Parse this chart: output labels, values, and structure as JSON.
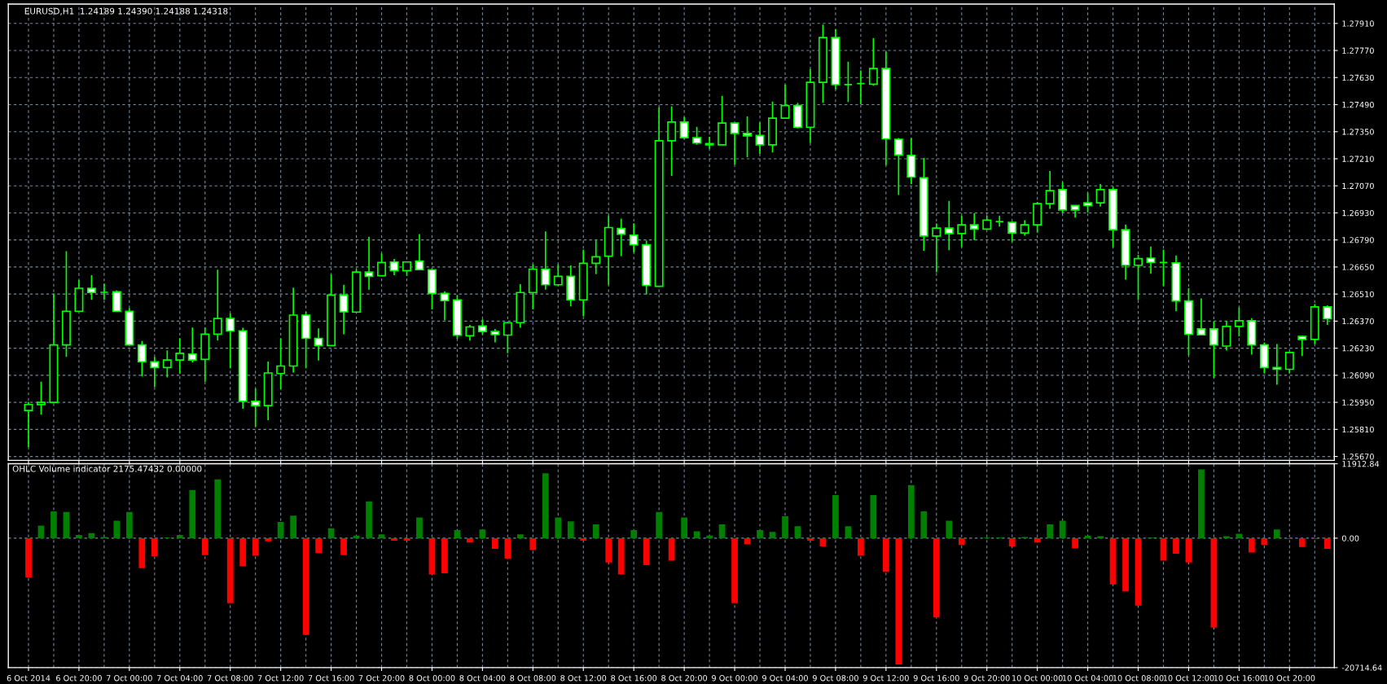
{
  "chart_data": [
    {
      "type": "candlestick",
      "title": "EURUSD,H1  1.24189 1.24390 1.24188 1.24318",
      "color": "#00ff00",
      "grid": true,
      "tick_labels": "y",
      "categories": [
        null,
        null,
        null,
        null,
        null,
        null,
        null,
        null,
        null,
        null,
        null,
        null,
        null,
        null,
        null,
        null,
        null,
        null,
        null,
        null,
        null,
        null,
        null,
        null,
        null,
        null,
        null,
        null,
        null,
        null,
        null,
        null,
        null,
        null,
        null,
        null,
        null,
        null,
        null,
        null,
        null,
        null,
        null,
        null,
        null,
        null,
        null,
        null,
        null,
        null,
        null,
        null,
        null,
        null,
        null,
        null,
        null,
        null,
        null,
        null,
        null,
        null,
        null,
        null,
        null,
        null,
        null,
        null,
        null,
        null,
        null,
        null,
        null,
        null,
        null,
        null,
        null,
        null,
        null,
        null,
        null,
        null,
        null,
        null,
        null,
        null,
        null,
        null,
        null,
        null,
        null,
        null,
        null,
        null,
        null,
        null,
        null,
        null,
        null,
        null,
        null,
        null,
        null,
        null
      ],
      "ohlc": [
        [
          1.25908,
          1.25952,
          1.25718,
          1.25939
        ],
        [
          1.25938,
          1.26057,
          1.25886,
          1.2595
        ],
        [
          1.2595,
          1.26512,
          1.2595,
          1.26247
        ],
        [
          1.26247,
          1.26732,
          1.26185,
          1.26421
        ],
        [
          1.26421,
          1.26582,
          1.26418,
          1.2654
        ],
        [
          1.2654,
          1.26608,
          1.2648,
          1.26518
        ],
        [
          1.26519,
          1.26564,
          1.2648,
          1.26519
        ],
        [
          1.26522,
          1.2653,
          1.26421,
          1.26421
        ],
        [
          1.26421,
          1.26437,
          1.26247,
          1.26247
        ],
        [
          1.26247,
          1.26267,
          1.26084,
          1.2616
        ],
        [
          1.2616,
          1.26185,
          1.26029,
          1.2613
        ],
        [
          1.2613,
          1.26219,
          1.26079,
          1.26169
        ],
        [
          1.26169,
          1.26281,
          1.26099,
          1.26204
        ],
        [
          1.262,
          1.26337,
          1.26157,
          1.26169
        ],
        [
          1.26172,
          1.26337,
          1.26057,
          1.26303
        ],
        [
          1.26303,
          1.26636,
          1.2627,
          1.26384
        ],
        [
          1.26384,
          1.2641,
          1.26126,
          1.26319
        ],
        [
          1.2632,
          1.26336,
          1.25917,
          1.25955
        ],
        [
          1.25955,
          1.26021,
          1.25824,
          1.25933
        ],
        [
          1.25933,
          1.26161,
          1.25858,
          1.26102
        ],
        [
          1.26099,
          1.26281,
          1.26017,
          1.26138
        ],
        [
          1.26138,
          1.26543,
          1.26104,
          1.26401
        ],
        [
          1.26401,
          1.26418,
          1.26126,
          1.26281
        ],
        [
          1.26281,
          1.26333,
          1.26166,
          1.26244
        ],
        [
          1.26244,
          1.26611,
          1.26244,
          1.26505
        ],
        [
          1.26505,
          1.26558,
          1.26302,
          1.26418
        ],
        [
          1.26417,
          1.26639,
          1.26417,
          1.26624
        ],
        [
          1.26624,
          1.26807,
          1.26533,
          1.26602
        ],
        [
          1.26605,
          1.2672,
          1.26605,
          1.26673
        ],
        [
          1.26676,
          1.26692,
          1.26608,
          1.26631
        ],
        [
          1.26631,
          1.26676,
          1.26605,
          1.26676
        ],
        [
          1.26681,
          1.2682,
          1.26636,
          1.26636
        ],
        [
          1.26636,
          1.26641,
          1.26431,
          1.26513
        ],
        [
          1.26513,
          1.26524,
          1.26375,
          1.26476
        ],
        [
          1.2648,
          1.26504,
          1.26278,
          1.26297
        ],
        [
          1.26294,
          1.26351,
          1.2627,
          1.2634
        ],
        [
          1.26345,
          1.26379,
          1.26302,
          1.26316
        ],
        [
          1.26316,
          1.2633,
          1.2626,
          1.263
        ],
        [
          1.26298,
          1.26362,
          1.26204,
          1.26362
        ],
        [
          1.26362,
          1.26561,
          1.26336,
          1.26518
        ],
        [
          1.26518,
          1.26664,
          1.26431,
          1.26639
        ],
        [
          1.26639,
          1.26834,
          1.26533,
          1.26558
        ],
        [
          1.26558,
          1.26664,
          1.26555,
          1.26602
        ],
        [
          1.26602,
          1.26658,
          1.26446,
          1.2648
        ],
        [
          1.2648,
          1.2674,
          1.26395,
          1.26669
        ],
        [
          1.26669,
          1.26788,
          1.26613,
          1.26703
        ],
        [
          1.26706,
          1.26916,
          1.26558,
          1.26854
        ],
        [
          1.26849,
          1.269,
          1.26706,
          1.2682
        ],
        [
          1.26815,
          1.26876,
          1.26726,
          1.26765
        ],
        [
          1.26765,
          1.26787,
          1.26508,
          1.26555
        ],
        [
          1.2655,
          1.27476,
          1.26547,
          1.27303
        ],
        [
          1.27303,
          1.27482,
          1.27121,
          1.274
        ],
        [
          1.274,
          1.27426,
          1.27313,
          1.27319
        ],
        [
          1.27319,
          1.27375,
          1.27282,
          1.27291
        ],
        [
          1.27289,
          1.27324,
          1.27261,
          1.27282
        ],
        [
          1.27282,
          1.27535,
          1.27282,
          1.27395
        ],
        [
          1.27395,
          1.27395,
          1.2718,
          1.27341
        ],
        [
          1.27341,
          1.27429,
          1.27218,
          1.27328
        ],
        [
          1.27331,
          1.27397,
          1.27235,
          1.27282
        ],
        [
          1.27282,
          1.27506,
          1.27243,
          1.2742
        ],
        [
          1.2742,
          1.27593,
          1.27417,
          1.27485
        ],
        [
          1.27485,
          1.27499,
          1.27367,
          1.27373
        ],
        [
          1.27373,
          1.27674,
          1.27292,
          1.27605
        ],
        [
          1.27605,
          1.27904,
          1.27499,
          1.27837
        ],
        [
          1.27837,
          1.2788,
          1.27569,
          1.27593
        ],
        [
          1.27594,
          1.27712,
          1.27504,
          1.27594
        ],
        [
          1.27599,
          1.27667,
          1.27492,
          1.27599
        ],
        [
          1.27596,
          1.27834,
          1.27588,
          1.27677
        ],
        [
          1.27677,
          1.27764,
          1.27177,
          1.27313
        ],
        [
          1.27311,
          1.27317,
          1.27022,
          1.27229
        ],
        [
          1.27227,
          1.27317,
          1.27079,
          1.27115
        ],
        [
          1.27112,
          1.27214,
          1.26734,
          1.2681
        ],
        [
          1.2681,
          1.26875,
          1.26623,
          1.26851
        ],
        [
          1.26851,
          1.26992,
          1.26737,
          1.26823
        ],
        [
          1.26823,
          1.26915,
          1.26753,
          1.26868
        ],
        [
          1.26868,
          1.26928,
          1.26789,
          1.26846
        ],
        [
          1.26846,
          1.26915,
          1.26846,
          1.26893
        ],
        [
          1.26885,
          1.26915,
          1.26859,
          1.26885
        ],
        [
          1.26881,
          1.26885,
          1.26781,
          1.26826
        ],
        [
          1.26826,
          1.26892,
          1.26812,
          1.26868
        ],
        [
          1.26868,
          1.26987,
          1.26828,
          1.26978
        ],
        [
          1.26978,
          1.27147,
          1.26951,
          1.27045
        ],
        [
          1.2705,
          1.2709,
          1.26932,
          1.26945
        ],
        [
          1.26968,
          1.26968,
          1.26906,
          1.26945
        ],
        [
          1.26982,
          1.27034,
          1.26932,
          1.26968
        ],
        [
          1.26982,
          1.27079,
          1.26962,
          1.2705
        ],
        [
          1.2705,
          1.27065,
          1.26753,
          1.26843
        ],
        [
          1.26843,
          1.2687,
          1.26584,
          1.26659
        ],
        [
          1.26659,
          1.26713,
          1.26479,
          1.26693
        ],
        [
          1.26696,
          1.26756,
          1.26615,
          1.26674
        ],
        [
          1.26673,
          1.2674,
          1.26552,
          1.26673
        ],
        [
          1.26671,
          1.2671,
          1.26421,
          1.26474
        ],
        [
          1.26474,
          1.26541,
          1.26193,
          1.26302
        ],
        [
          1.2633,
          1.26487,
          1.26296,
          1.26299
        ],
        [
          1.2633,
          1.26369,
          1.26077,
          1.26247
        ],
        [
          1.26241,
          1.26372,
          1.26218,
          1.26343
        ],
        [
          1.26343,
          1.2644,
          1.26291,
          1.26372
        ],
        [
          1.26372,
          1.26385,
          1.26197,
          1.26247
        ],
        [
          1.26247,
          1.2626,
          1.261,
          1.2613
        ],
        [
          1.2613,
          1.26252,
          1.26041,
          1.26121
        ],
        [
          1.26121,
          1.26213,
          1.261,
          1.26208
        ],
        [
          1.26291,
          1.26294,
          1.26189,
          1.26275
        ],
        [
          1.26275,
          1.26458,
          1.26252,
          1.26444
        ],
        [
          1.26444,
          1.26452,
          1.26351,
          1.26382
        ]
      ],
      "ylim": [
        1.2565,
        1.2801
      ],
      "yticks": [
        {
          "value": 1.2567,
          "label": "1.25670"
        },
        {
          "value": 1.2581,
          "label": "1.25810"
        },
        {
          "value": 1.2595,
          "label": "1.25950"
        },
        {
          "value": 1.2609,
          "label": "1.26090"
        },
        {
          "value": 1.2623,
          "label": "1.26230"
        },
        {
          "value": 1.2637,
          "label": "1.26370"
        },
        {
          "value": 1.2651,
          "label": "1.26510"
        },
        {
          "value": 1.2665,
          "label": "1.26650"
        },
        {
          "value": 1.2679,
          "label": "1.26790"
        },
        {
          "value": 1.2693,
          "label": "1.26930"
        },
        {
          "value": 1.2707,
          "label": "1.27070"
        },
        {
          "value": 1.2721,
          "label": "1.27210"
        },
        {
          "value": 1.2735,
          "label": "1.27350"
        },
        {
          "value": 1.2749,
          "label": "1.27490"
        },
        {
          "value": 1.2763,
          "label": "1.27630"
        },
        {
          "value": 1.2777,
          "label": "1.27770"
        },
        {
          "value": 1.2791,
          "label": "1.27910"
        }
      ]
    },
    {
      "type": "bar",
      "title": "OHLC Volume indicator 2175.47432 0.00000",
      "grid": true,
      "categories": [
        "6 Oct 2014",
        null,
        null,
        null,
        "6 Oct 20:00",
        null,
        null,
        null,
        "7 Oct 00:00",
        null,
        null,
        null,
        "7 Oct 04:00",
        null,
        null,
        null,
        "7 Oct 08:00",
        null,
        null,
        null,
        "7 Oct 12:00",
        null,
        null,
        null,
        "7 Oct 16:00",
        null,
        null,
        null,
        "7 Oct 20:00",
        null,
        null,
        null,
        "8 Oct 00:00",
        null,
        null,
        null,
        "8 Oct 04:00",
        null,
        null,
        null,
        "8 Oct 08:00",
        null,
        null,
        null,
        "8 Oct 12:00",
        null,
        null,
        null,
        "8 Oct 16:00",
        null,
        null,
        null,
        "8 Oct 20:00",
        null,
        null,
        null,
        "9 Oct 00:00",
        null,
        null,
        null,
        "9 Oct 04:00",
        null,
        null,
        null,
        "9 Oct 08:00",
        null,
        null,
        null,
        "9 Oct 12:00",
        null,
        null,
        null,
        "9 Oct 16:00",
        null,
        null,
        null,
        "9 Oct 20:00",
        null,
        null,
        null,
        "10 Oct 00:00",
        null,
        null,
        null,
        "10 Oct 04:00",
        null,
        null,
        null,
        "10 Oct 08:00",
        null,
        null,
        null,
        "10 Oct 12:00",
        null,
        null,
        null,
        "10 Oct 16:00",
        null,
        null,
        null,
        "10 Oct 20:00",
        null,
        null,
        null
      ],
      "values": [
        -6300,
        2000,
        4300,
        4200,
        500,
        800,
        200,
        2800,
        4200,
        -4800,
        -2900,
        100,
        500,
        7700,
        -2700,
        9400,
        -10400,
        -4500,
        -2800,
        -500,
        2600,
        3600,
        -15500,
        -2400,
        1600,
        -2700,
        400,
        5900,
        600,
        -400,
        -400,
        3300,
        -5800,
        -5600,
        1300,
        -700,
        1400,
        -1700,
        -3300,
        600,
        -1900,
        10400,
        3300,
        2700,
        -400,
        2200,
        -3900,
        -5800,
        1300,
        -4300,
        4200,
        -3600,
        3300,
        1100,
        400,
        2200,
        -10400,
        -1000,
        1300,
        1000,
        3500,
        1900,
        -400,
        -1300,
        6900,
        1900,
        -2800,
        6900,
        -5400,
        -20200,
        8500,
        4300,
        -12700,
        2800,
        -1100,
        0,
        100,
        100,
        -1300,
        200,
        -700,
        2200,
        2800,
        -1600,
        400,
        300,
        -7400,
        -8500,
        -10800,
        100,
        -3600,
        -2500,
        -3900,
        11000,
        -14300,
        300,
        700,
        -2300,
        -1100,
        1400,
        -100,
        -1400,
        -100,
        -1700
      ],
      "colors": [
        "#ff0000",
        "#008000",
        "#008000",
        "#008000",
        "#008000",
        "#008000",
        "#008000",
        "#008000",
        "#008000",
        "#ff0000",
        "#ff0000",
        "#008000",
        "#008000",
        "#008000",
        "#ff0000",
        "#008000",
        "#ff0000",
        "#ff0000",
        "#ff0000",
        "#ff0000",
        "#008000",
        "#008000",
        "#ff0000",
        "#ff0000",
        "#008000",
        "#ff0000",
        "#008000",
        "#008000",
        "#008000",
        "#ff0000",
        "#ff0000",
        "#008000",
        "#ff0000",
        "#ff0000",
        "#008000",
        "#ff0000",
        "#008000",
        "#ff0000",
        "#ff0000",
        "#008000",
        "#ff0000",
        "#008000",
        "#008000",
        "#008000",
        "#ff0000",
        "#008000",
        "#ff0000",
        "#ff0000",
        "#008000",
        "#ff0000",
        "#008000",
        "#ff0000",
        "#008000",
        "#008000",
        "#008000",
        "#008000",
        "#ff0000",
        "#ff0000",
        "#008000",
        "#008000",
        "#008000",
        "#008000",
        "#ff0000",
        "#ff0000",
        "#008000",
        "#008000",
        "#ff0000",
        "#008000",
        "#ff0000",
        "#ff0000",
        "#008000",
        "#008000",
        "#ff0000",
        "#008000",
        "#ff0000",
        "#008000",
        "#008000",
        "#008000",
        "#ff0000",
        "#008000",
        "#ff0000",
        "#008000",
        "#008000",
        "#ff0000",
        "#008000",
        "#008000",
        "#ff0000",
        "#ff0000",
        "#ff0000",
        "#008000",
        "#ff0000",
        "#ff0000",
        "#ff0000",
        "#008000",
        "#ff0000",
        "#008000",
        "#008000",
        "#ff0000",
        "#ff0000",
        "#008000",
        "#ff0000",
        "#ff0000",
        "#ff0000",
        "#ff0000"
      ],
      "ylim": [
        -20714.64,
        11912.84
      ],
      "yticks": [
        {
          "value": 11912.84,
          "label": "11912.84"
        },
        {
          "value": 0,
          "label": "0.00"
        },
        {
          "value": -20714.64,
          "label": "-20714.64"
        }
      ]
    }
  ]
}
